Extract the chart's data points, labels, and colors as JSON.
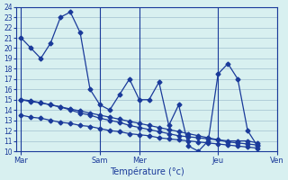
{
  "title": "",
  "xlabel": "Température (°c)",
  "ylabel": "",
  "bg_color": "#d8f0f0",
  "grid_color": "#a0c0d0",
  "line_color": "#1a3a9a",
  "ylim": [
    10,
    24
  ],
  "yticks": [
    10,
    11,
    12,
    13,
    14,
    15,
    16,
    17,
    18,
    19,
    20,
    21,
    22,
    23,
    24
  ],
  "day_labels": [
    "Mar",
    "Sam",
    "Mer",
    "Jeu",
    "Ven"
  ],
  "day_positions": [
    0,
    8,
    12,
    20,
    26
  ],
  "series": [
    [
      21,
      20,
      19,
      20.5,
      23,
      23.5,
      21.5,
      16,
      14.5,
      14,
      15.5,
      17,
      15,
      15,
      16.7,
      12.5,
      14.5,
      10.5,
      10,
      11,
      17.5,
      18.5,
      17,
      12,
      10.5
    ],
    [
      15,
      14.8,
      14.7,
      14.5,
      14.3,
      14.0,
      13.7,
      13.5,
      13.2,
      13.0,
      12.8,
      12.5,
      12.3,
      12.1,
      11.9,
      11.7,
      11.5,
      11.4,
      11.3,
      11.2,
      11.1,
      11.0,
      11.0,
      11.0,
      10.8
    ],
    [
      15,
      14.9,
      14.7,
      14.5,
      14.3,
      14.1,
      13.9,
      13.7,
      13.5,
      13.3,
      13.1,
      12.9,
      12.7,
      12.5,
      12.3,
      12.1,
      11.9,
      11.7,
      11.5,
      11.3,
      11.1,
      10.9,
      10.8,
      10.7,
      10.6
    ],
    [
      13.5,
      13.3,
      13.2,
      13.0,
      12.8,
      12.7,
      12.5,
      12.4,
      12.2,
      12.0,
      11.9,
      11.7,
      11.6,
      11.5,
      11.3,
      11.2,
      11.1,
      11.0,
      10.9,
      10.8,
      10.7,
      10.6,
      10.5,
      10.4,
      10.3
    ]
  ],
  "n_points": 25
}
